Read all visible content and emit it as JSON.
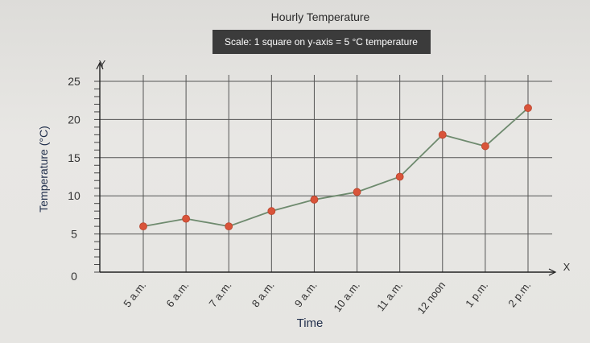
{
  "chart_data": {
    "type": "line",
    "title": "Hourly Temperature",
    "subtitle": "Scale: 1 square on y-axis = 5 °C temperature",
    "xlabel": "Time",
    "ylabel": "Temperature (°C)",
    "x_axis_letter": "X",
    "y_axis_letter": "Y",
    "categories": [
      "5 a.m.",
      "6 a.m.",
      "7 a.m.",
      "8 a.m.",
      "9 a.m.",
      "10 a.m.",
      "11 a.m.",
      "12 noon",
      "1 p.m.",
      "2 p.m."
    ],
    "values": [
      6,
      7,
      6,
      8,
      9.5,
      10.5,
      12.5,
      18,
      16.5,
      21.5
    ],
    "y_ticks": [
      "0",
      "5",
      "10",
      "15",
      "20",
      "25"
    ],
    "ylim": [
      0,
      25
    ],
    "grid": true,
    "colors": {
      "line": "#6e8a6e",
      "marker": "#d9543a",
      "grid": "#555555",
      "scale_box": "#3b3b3b"
    }
  }
}
